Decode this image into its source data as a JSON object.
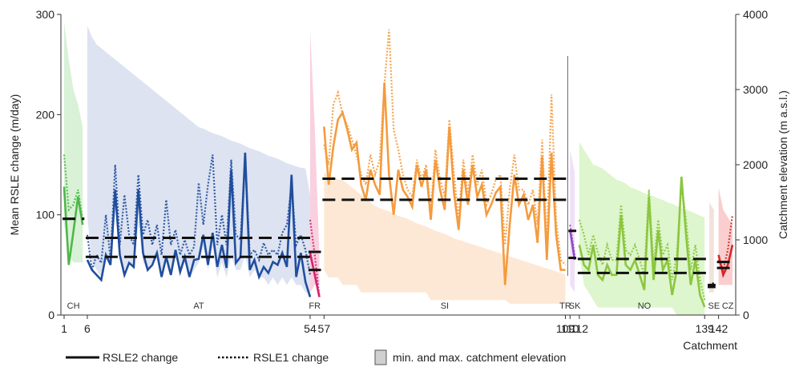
{
  "chart_data": {
    "type": "line",
    "title": "",
    "xlabel": "Catchment",
    "ylabel_left": "Mean RSLE change (m/day)",
    "ylabel_right": "Catchment elevation (m a.s.l.)",
    "x_range": [
      1,
      145
    ],
    "ylim_left": [
      0,
      300
    ],
    "ylim_right": [
      0,
      4000
    ],
    "yticks_left": [
      "0",
      "100",
      "200",
      "300"
    ],
    "yticks_right": [
      "0",
      "1000",
      "2000",
      "3000",
      "4000"
    ],
    "xticks": [
      {
        "x": 1,
        "label": "1"
      },
      {
        "x": 6,
        "label": "6"
      },
      {
        "x": 54,
        "label": "54"
      },
      {
        "x": 57,
        "label": "57"
      },
      {
        "x": 109,
        "label": "109"
      },
      {
        "x": 110,
        "label": "110"
      },
      {
        "x": 112,
        "label": "112"
      },
      {
        "x": 139,
        "label": "139"
      },
      {
        "x": 142,
        "label": "142"
      }
    ],
    "legend": {
      "placement": "bottom",
      "items": [
        {
          "style": "solid",
          "label": "RSLE2 change"
        },
        {
          "style": "dotted",
          "label": "RSLE1 change"
        },
        {
          "style": "fill",
          "label": "min. and max. catchment elevation"
        }
      ]
    },
    "separator_x": [
      109.5
    ],
    "countries": [
      {
        "code": "CH",
        "start": 1,
        "end": 5,
        "label_x": 3,
        "color": "#4cb848",
        "elev_color": "#d5efd3",
        "rsle2_mean": 96,
        "rsle1_mean": 96,
        "rsle2": [
          128,
          50,
          83,
          118,
          90
        ],
        "rsle1": [
          160,
          105,
          110,
          125,
          95
        ],
        "elev_min": [
          1200,
          800,
          700,
          700,
          700
        ],
        "elev_max": [
          3900,
          3400,
          3000,
          2800,
          2500
        ]
      },
      {
        "code": "AT",
        "start": 6,
        "end": 54,
        "label_x": 30,
        "color": "#1f4e9e",
        "elev_color": "#d9e0ef",
        "rsle2_mean": 58,
        "rsle1_mean": 77,
        "rsle2": [
          55,
          45,
          40,
          35,
          60,
          50,
          125,
          60,
          40,
          52,
          48,
          125,
          62,
          45,
          50,
          62,
          38,
          58,
          40,
          65,
          43,
          58,
          38,
          55,
          56,
          80,
          50,
          82,
          48,
          70,
          47,
          145,
          52,
          58,
          162,
          45,
          55,
          38,
          48,
          42,
          53,
          50,
          62,
          48,
          140,
          38,
          62,
          33,
          18
        ],
        "rsle1": [
          80,
          45,
          60,
          52,
          100,
          55,
          150,
          70,
          120,
          80,
          70,
          140,
          80,
          95,
          70,
          90,
          60,
          115,
          70,
          85,
          60,
          75,
          60,
          68,
          132,
          90,
          130,
          160,
          70,
          100,
          70,
          155,
          80,
          75,
          158,
          60,
          65,
          55,
          72,
          60,
          65,
          60,
          82,
          90,
          130,
          70,
          80,
          65,
          40
        ],
        "elev_min": [
          1300,
          700,
          600,
          500,
          800,
          700,
          1400,
          800,
          600,
          700,
          600,
          1200,
          700,
          600,
          700,
          800,
          600,
          700,
          600,
          900,
          600,
          700,
          500,
          600,
          700,
          900,
          600,
          900,
          500,
          700,
          500,
          800,
          600,
          600,
          800,
          500,
          600,
          500,
          500,
          400,
          500,
          400,
          500,
          400,
          500,
          400,
          400,
          300,
          300
        ],
        "elev_max": [
          3850,
          3700,
          3600,
          3550,
          3500,
          3450,
          3400,
          3350,
          3300,
          3250,
          3200,
          3150,
          3100,
          3050,
          3000,
          2950,
          2900,
          2850,
          2800,
          2750,
          2700,
          2650,
          2600,
          2550,
          2500,
          2480,
          2450,
          2420,
          2400,
          2380,
          2350,
          2320,
          2300,
          2280,
          2250,
          2220,
          2200,
          2180,
          2150,
          2120,
          2100,
          2080,
          2050,
          2020,
          2000,
          1980,
          1960,
          1950,
          1600
        ]
      },
      {
        "code": "FR",
        "start": 54,
        "end": 56,
        "label_x": 55,
        "color": "#d4246e",
        "elev_color": "#f8cbdc",
        "rsle2_mean": 63,
        "rsle1_mean": 45,
        "rsle2": [
          62,
          40,
          18
        ],
        "rsle1": [
          95,
          60,
          18
        ],
        "elev_min": [
          300,
          400,
          400
        ],
        "elev_max": [
          3800,
          2500,
          800
        ]
      },
      {
        "code": "SI",
        "start": 57,
        "end": 109,
        "label_x": 83,
        "color": "#f59b3d",
        "elev_color": "#fde5d2",
        "rsle2_mean": 115,
        "rsle1_mean": 136,
        "rsle2": [
          188,
          130,
          168,
          195,
          202,
          185,
          165,
          172,
          130,
          115,
          145,
          130,
          120,
          232,
          140,
          100,
          145,
          125,
          118,
          108,
          150,
          128,
          145,
          95,
          155,
          125,
          105,
          188,
          122,
          85,
          145,
          110,
          150,
          118,
          130,
          100,
          110,
          122,
          128,
          30,
          90,
          140,
          110,
          120,
          95,
          110,
          72,
          158,
          55,
          162,
          80,
          45,
          45
        ],
        "rsle1": [
          170,
          150,
          210,
          222,
          200,
          190,
          175,
          160,
          140,
          130,
          160,
          140,
          155,
          230,
          285,
          185,
          165,
          140,
          125,
          118,
          155,
          135,
          150,
          105,
          165,
          135,
          118,
          195,
          140,
          95,
          155,
          120,
          160,
          130,
          145,
          110,
          120,
          135,
          140,
          70,
          125,
          160,
          125,
          125,
          110,
          125,
          90,
          175,
          70,
          220,
          95,
          55,
          50
        ],
        "elev_min": [
          600,
          500,
          500,
          500,
          400,
          400,
          400,
          400,
          300,
          300,
          300,
          300,
          300,
          300,
          300,
          300,
          300,
          300,
          300,
          300,
          300,
          300,
          300,
          200,
          200,
          200,
          200,
          200,
          200,
          200,
          200,
          200,
          200,
          200,
          200,
          200,
          200,
          200,
          200,
          200,
          150,
          150,
          150,
          150,
          150,
          150,
          150,
          150,
          150,
          150,
          150,
          150,
          150
        ],
        "elev_max": [
          1900,
          1850,
          1850,
          1800,
          1800,
          1750,
          1700,
          1650,
          1600,
          1550,
          1500,
          1450,
          1420,
          1400,
          1380,
          1350,
          1320,
          1300,
          1280,
          1250,
          1220,
          1200,
          1180,
          1150,
          1120,
          1100,
          1080,
          1050,
          1020,
          1000,
          980,
          960,
          940,
          920,
          900,
          880,
          860,
          840,
          820,
          800,
          780,
          760,
          740,
          720,
          700,
          680,
          660,
          640,
          620,
          600,
          580,
          560,
          540
        ]
      },
      {
        "code": "TR",
        "start": 109,
        "end": 109,
        "label_x": 109,
        "color": "#000000",
        "elev_color": "#ffffff",
        "rsle2_mean": null,
        "rsle1_mean": null,
        "rsle2": [],
        "rsle1": [],
        "elev_min": [],
        "elev_max": []
      },
      {
        "code": "SK",
        "start": 110,
        "end": 111,
        "label_x": 111,
        "color": "#8f4cc7",
        "elev_color": "#eddcf7",
        "rsle2_mean": 57,
        "rsle1_mean": 84,
        "rsle2": [
          85,
          55
        ],
        "rsle1": [
          90,
          60
        ],
        "elev_min": [
          400,
          300
        ],
        "elev_max": [
          2200,
          1900
        ]
      },
      {
        "code": "NO",
        "start": 112,
        "end": 139,
        "label_x": 126,
        "color": "#8cc63f",
        "elev_color": "#d9f5c8",
        "rsle2_mean": 42,
        "rsle1_mean": 56,
        "rsle2": [
          70,
          50,
          45,
          70,
          40,
          35,
          50,
          40,
          40,
          100,
          50,
          45,
          55,
          40,
          25,
          118,
          35,
          85,
          45,
          55,
          20,
          45,
          138,
          80,
          30,
          55,
          20,
          8
        ],
        "rsle1": [
          95,
          80,
          60,
          80,
          62,
          50,
          70,
          55,
          55,
          110,
          65,
          60,
          70,
          55,
          40,
          125,
          50,
          95,
          60,
          70,
          35,
          60,
          130,
          95,
          45,
          70,
          35,
          15
        ],
        "elev_min": [
          800,
          400,
          300,
          200,
          100,
          100,
          100,
          100,
          100,
          100,
          100,
          100,
          100,
          100,
          100,
          100,
          100,
          100,
          100,
          100,
          100,
          0,
          0,
          0,
          0,
          0,
          0,
          0
        ],
        "elev_max": [
          2300,
          2200,
          2100,
          2000,
          1980,
          1950,
          1900,
          1850,
          1800,
          1780,
          1750,
          1700,
          1680,
          1650,
          1620,
          1600,
          1580,
          1550,
          1530,
          1500,
          1480,
          1450,
          1420,
          1400,
          1380,
          1350,
          1320,
          1300
        ]
      },
      {
        "code": "SE",
        "start": 140,
        "end": 141,
        "label_x": 141,
        "color": "#000000",
        "elev_color": "#efe0d8",
        "rsle2_mean": 28,
        "rsle1_mean": 30,
        "rsle2": [
          28,
          30
        ],
        "rsle1": [
          30,
          32
        ],
        "elev_min": [
          300,
          300
        ],
        "elev_max": [
          1500,
          1400
        ]
      },
      {
        "code": "CZ",
        "start": 142,
        "end": 145,
        "label_x": 144,
        "color": "#d62728",
        "elev_color": "#f9c9c9",
        "rsle2_mean": 53,
        "rsle1_mean": 47,
        "rsle2": [
          60,
          40,
          50,
          70
        ],
        "rsle1": [
          55,
          45,
          65,
          100
        ],
        "elev_min": [
          400,
          400,
          400,
          400
        ],
        "elev_max": [
          1700,
          1400,
          1300,
          1200
        ]
      }
    ]
  }
}
